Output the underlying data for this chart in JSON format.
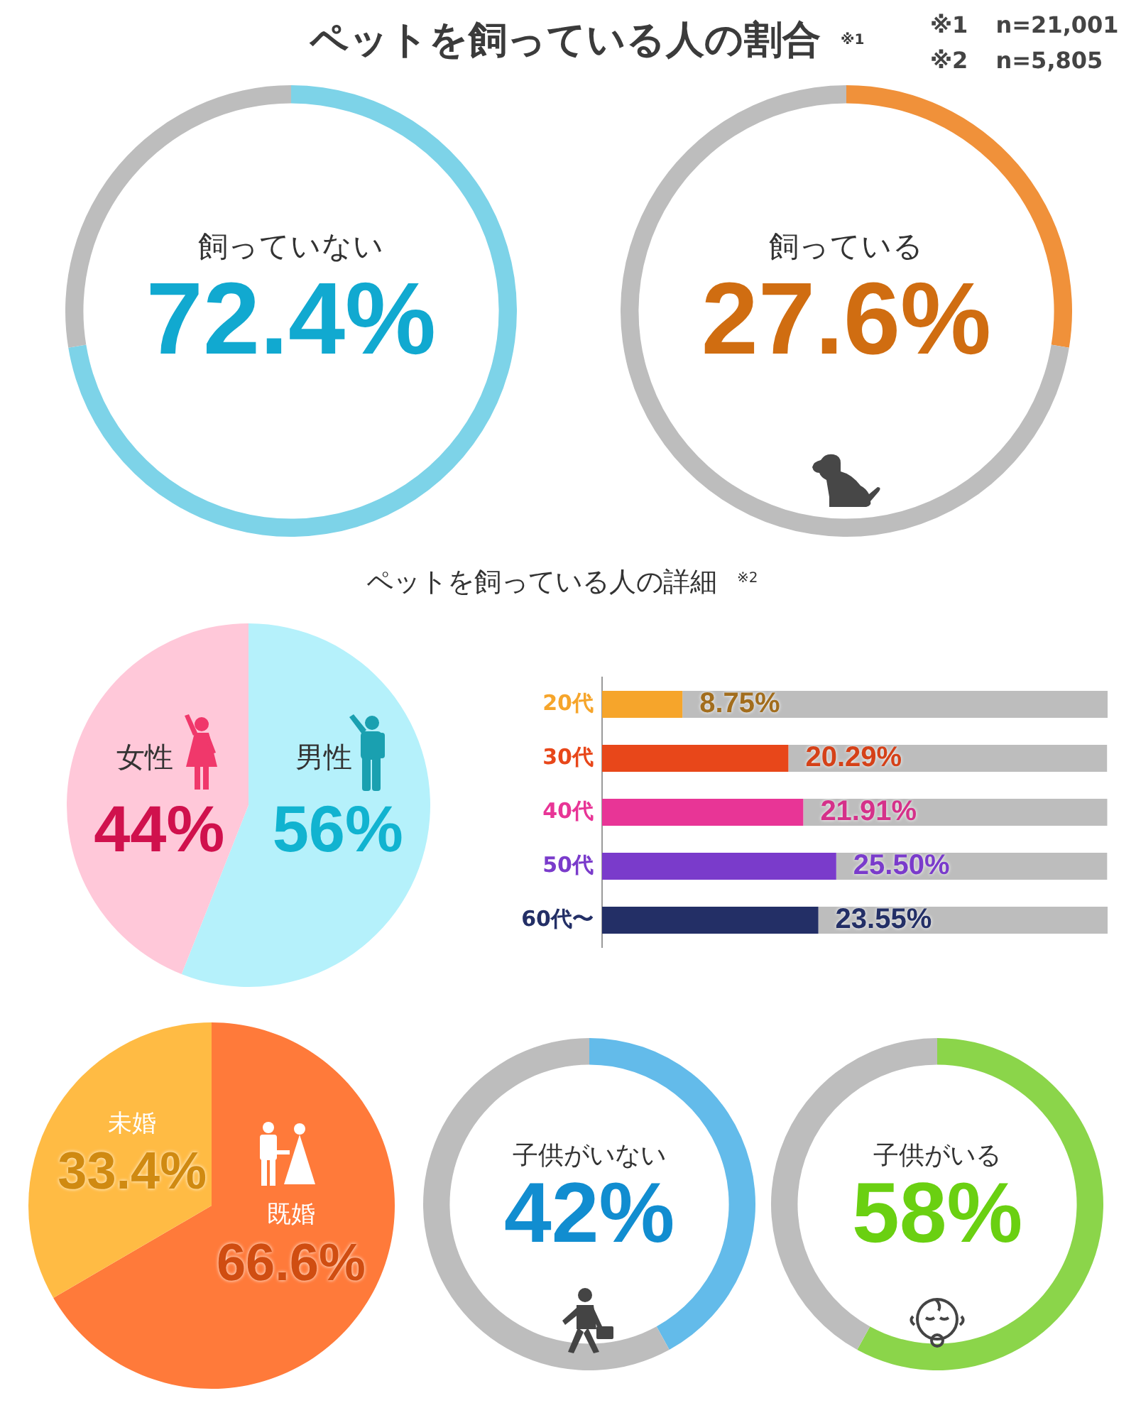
{
  "chart_data": [
    {
      "type": "donut",
      "title": "ペットを飼っている人の割合$^{※1}$",
      "annotations": [
        "※1 n=21,001",
        "※2 n=5,805"
      ],
      "categories": [
        "飼っていない",
        null
      ],
      "values": [
        72.4,
        27.6
      ],
      "colors": [
        "#7dd3e8",
        "#bdbdbd"
      ],
      "value_labels": [
        "72.4%",
        null
      ]
    },
    {
      "type": "donut",
      "categories": [
        "飼っている",
        null
      ],
      "values": [
        27.6,
        72.4
      ],
      "colors": [
        "#f0913a",
        "#bdbdbd"
      ],
      "value_labels": [
        "27.6%",
        null
      ]
    },
    {
      "type": "pie",
      "title": "ペットを飼っている人の詳細$^{※2}$",
      "categories": [
        "男性",
        "女性"
      ],
      "values": [
        56,
        44
      ],
      "colors": [
        "#b5f1fb",
        "#ffc8d9"
      ],
      "value_labels": [
        "56%",
        "44%"
      ]
    },
    {
      "type": "bar",
      "orientation": "horizontal",
      "stacked": true,
      "categories": [
        "20代",
        "30代",
        "40代",
        "50代",
        "60代〜"
      ],
      "series": [
        {
          "colors": [
            "#f6a52b",
            "#e8471a",
            "#e83596",
            "#7a3bcb",
            "#232f66"
          ],
          "values": [
            8.75,
            20.29,
            21.91,
            25.5,
            23.55
          ],
          "value_labels": [
            "8.75%",
            "20.29%",
            "21.91%",
            "25.50%",
            "23.55%"
          ]
        },
        {
          "color": "#bdbdbd",
          "values": [
            46.3,
            34.7,
            33.1,
            29.5,
            31.5
          ]
        }
      ]
    },
    {
      "type": "pie",
      "categories": [
        "既婚",
        "未婚"
      ],
      "values": [
        66.6,
        33.4
      ],
      "colors": [
        "#ff7a3a",
        "#ffbb44"
      ],
      "value_labels": [
        "66.6%",
        "33.4%"
      ]
    },
    {
      "type": "donut",
      "categories": [
        "子供がいない",
        null
      ],
      "values": [
        42,
        58
      ],
      "colors": [
        "#63bbea",
        "#bdbdbd"
      ],
      "value_labels": [
        "42%",
        null
      ]
    },
    {
      "type": "donut",
      "categories": [
        "子供がいる",
        null
      ],
      "values": [
        58,
        42
      ],
      "colors": [
        "#8bd54a",
        "#bdbdbd"
      ],
      "value_labels": [
        "58%",
        null
      ]
    }
  ]
}
